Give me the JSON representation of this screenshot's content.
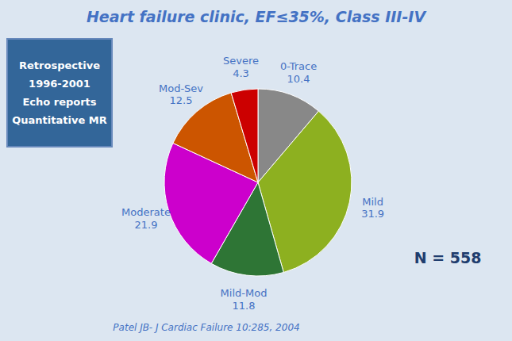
{
  "chart_data": {
    "type": "pie",
    "title": "Heart failure clinic, EF≤35%, Class III-IV",
    "categories": [
      "0-Trace",
      "Mild",
      "Mild-Mod",
      "Moderate",
      "Mod-Sev",
      "Severe"
    ],
    "values": [
      10.4,
      31.9,
      11.8,
      21.9,
      12.5,
      4.3
    ],
    "colors": [
      "#888888",
      "#8db020",
      "#2e7535",
      "#cc00cc",
      "#cc5500",
      "#cc0000"
    ],
    "data_labels": true,
    "annotations": [
      [
        "Retrospective",
        "1996-2001",
        "Echo reports",
        "Quantitative MR"
      ],
      [
        "N = 558"
      ],
      [
        "Patel JB- J Cardiac Failure 10:285, 2004"
      ]
    ]
  }
}
